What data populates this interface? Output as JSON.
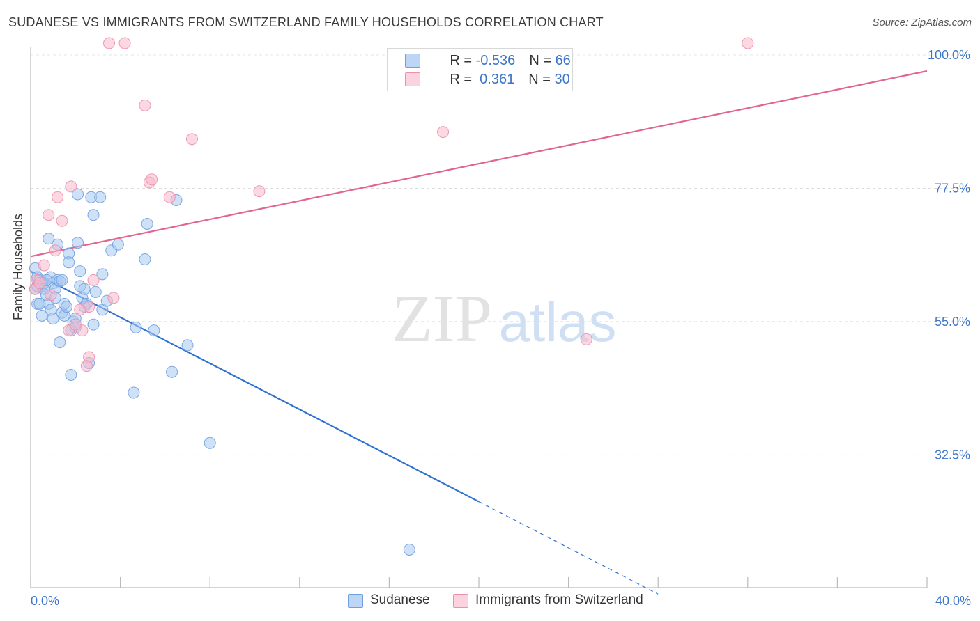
{
  "title": "SUDANESE VS IMMIGRANTS FROM SWITZERLAND FAMILY HOUSEHOLDS CORRELATION CHART",
  "source": "Source: ZipAtlas.com",
  "watermark": {
    "zip": "ZIP",
    "atlas": "atlas"
  },
  "legend": {
    "rows": [
      {
        "r_label": "R = ",
        "r_value": "-0.536",
        "n_label": "N = ",
        "n_value": "66",
        "color": "#a8c8f0"
      },
      {
        "r_label": "R = ",
        "r_value": " 0.361",
        "n_label": "N = ",
        "n_value": "30",
        "color": "#f7b8cb"
      }
    ]
  },
  "bottom_legend": [
    {
      "label": "Sudanese",
      "color": "#a8c8f0"
    },
    {
      "label": "Immigrants from Switzerland",
      "color": "#f7b8cb"
    }
  ],
  "chart_data": {
    "type": "scatter",
    "title": "SUDANESE VS IMMIGRANTS FROM SWITZERLAND FAMILY HOUSEHOLDS CORRELATION CHART",
    "xlabel": "",
    "ylabel": "Family Households",
    "xlim": [
      0,
      40
    ],
    "ylim": [
      11.5,
      102
    ],
    "x_tick_labels": [
      "0.0%",
      "40.0%"
    ],
    "y_ticks": [
      32.5,
      55.0,
      77.5,
      100.0
    ],
    "y_tick_labels": [
      "32.5%",
      "55.0%",
      "77.5%",
      "100.0%"
    ],
    "grid": true,
    "legend_position": "top-center",
    "series": [
      {
        "name": "Sudanese",
        "color": "#a8c8f0",
        "stroke": "#6e9fe0",
        "line_color": "#2e72d2",
        "trend": {
          "x": [
            0,
            20
          ],
          "y": [
            63.5,
            24.6
          ],
          "dashed_to": [
            28,
            9
          ]
        },
        "points": [
          [
            0.2,
            64.0
          ],
          [
            0.3,
            62.5
          ],
          [
            0.2,
            60.5
          ],
          [
            0.4,
            62.0
          ],
          [
            0.5,
            61.0
          ],
          [
            0.6,
            61.5
          ],
          [
            0.3,
            58.0
          ],
          [
            0.5,
            56.0
          ],
          [
            0.7,
            59.5
          ],
          [
            0.8,
            58.0
          ],
          [
            0.9,
            62.5
          ],
          [
            1.0,
            61.5
          ],
          [
            1.1,
            60.5
          ],
          [
            1.2,
            62.0
          ],
          [
            1.3,
            61.8
          ],
          [
            0.8,
            69.0
          ],
          [
            1.2,
            68.0
          ],
          [
            1.7,
            66.5
          ],
          [
            1.0,
            55.5
          ],
          [
            1.4,
            56.5
          ],
          [
            1.5,
            56.0
          ],
          [
            1.5,
            58.0
          ],
          [
            1.6,
            57.5
          ],
          [
            1.8,
            53.5
          ],
          [
            1.9,
            55.0
          ],
          [
            2.0,
            55.5
          ],
          [
            1.3,
            51.5
          ],
          [
            2.1,
            68.3
          ],
          [
            1.7,
            65.0
          ],
          [
            2.2,
            63.5
          ],
          [
            2.2,
            61.0
          ],
          [
            2.3,
            59.0
          ],
          [
            2.4,
            60.5
          ],
          [
            2.0,
            54.0
          ],
          [
            2.8,
            54.5
          ],
          [
            2.6,
            48.0
          ],
          [
            1.8,
            46.0
          ],
          [
            2.5,
            58.0
          ],
          [
            2.9,
            60.0
          ],
          [
            3.2,
            57.0
          ],
          [
            3.4,
            58.5
          ],
          [
            3.2,
            63.0
          ],
          [
            3.6,
            67.0
          ],
          [
            3.9,
            68.0
          ],
          [
            2.1,
            76.5
          ],
          [
            2.7,
            76.0
          ],
          [
            3.1,
            76.0
          ],
          [
            2.8,
            73.0
          ],
          [
            5.2,
            71.5
          ],
          [
            5.1,
            65.5
          ],
          [
            4.7,
            54.0
          ],
          [
            5.5,
            53.5
          ],
          [
            6.3,
            46.5
          ],
          [
            6.5,
            75.5
          ],
          [
            7.0,
            51.0
          ],
          [
            8.0,
            34.5
          ],
          [
            4.6,
            43.0
          ],
          [
            16.9,
            16.5
          ],
          [
            0.4,
            58.0
          ],
          [
            0.9,
            57.0
          ],
          [
            1.4,
            62.0
          ],
          [
            0.6,
            60.5
          ],
          [
            1.1,
            59.0
          ],
          [
            0.3,
            61.0
          ],
          [
            0.7,
            62.0
          ],
          [
            2.4,
            57.5
          ]
        ]
      },
      {
        "name": "Immigrants from Switzerland",
        "color": "#f7b8cb",
        "stroke": "#ee8fac",
        "line_color": "#e2658f",
        "trend": {
          "x": [
            0,
            40
          ],
          "y": [
            66.0,
            97.3
          ]
        },
        "points": [
          [
            3.5,
            102.0
          ],
          [
            4.2,
            102.0
          ],
          [
            32.0,
            102.0
          ],
          [
            5.1,
            91.5
          ],
          [
            7.2,
            85.8
          ],
          [
            18.4,
            87.0
          ],
          [
            1.8,
            77.8
          ],
          [
            5.3,
            78.5
          ],
          [
            5.4,
            79.0
          ],
          [
            1.2,
            76.0
          ],
          [
            6.2,
            76.0
          ],
          [
            10.2,
            77.0
          ],
          [
            0.8,
            73.0
          ],
          [
            1.4,
            72.0
          ],
          [
            1.1,
            67.0
          ],
          [
            0.6,
            64.5
          ],
          [
            0.3,
            62.0
          ],
          [
            0.2,
            60.5
          ],
          [
            2.8,
            62.0
          ],
          [
            3.7,
            59.0
          ],
          [
            2.6,
            57.5
          ],
          [
            1.7,
            53.5
          ],
          [
            2.3,
            53.5
          ],
          [
            2.6,
            49.0
          ],
          [
            2.5,
            47.5
          ],
          [
            24.8,
            52.0
          ],
          [
            0.9,
            59.5
          ],
          [
            0.4,
            61.5
          ],
          [
            2.0,
            54.5
          ],
          [
            2.2,
            57.0
          ]
        ]
      }
    ]
  }
}
